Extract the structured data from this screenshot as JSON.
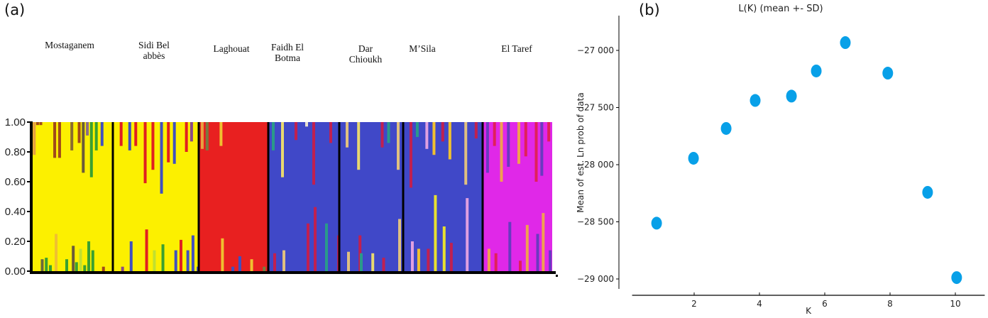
{
  "panel_a_label": "(a)",
  "panel_b_label": "(b)",
  "chart_data": [
    {
      "type": "bar",
      "subtype": "stacked-admixture",
      "title": "",
      "ylim": [
        0,
        1
      ],
      "yticks": [
        "0.00",
        "0.20",
        "0.40",
        "0.60",
        "0.80",
        "1.00"
      ],
      "populations": [
        {
          "name": "Mostaganem",
          "label": "Mostaganem",
          "base_color": "#fcf000",
          "stripes": [
            {
              "pos": 0.02,
              "top": [
                0.22,
                "#e8a040"
              ]
            },
            {
              "pos": 0.06,
              "top": [
                0.02,
                "#a04a1a"
              ]
            },
            {
              "pos": 0.1,
              "top": [
                0.02,
                "#a04a1a"
              ],
              "bottom": [
                0.08,
                "#6a6a3a"
              ]
            },
            {
              "pos": 0.15,
              "bottom": [
                0.09,
                "#3aa030"
              ]
            },
            {
              "pos": 0.2,
              "bottom": [
                0.04,
                "#3aa030"
              ]
            },
            {
              "pos": 0.27,
              "top": [
                0.24,
                "#a04a1a"
              ],
              "bottom": [
                0.25,
                "#f0c030"
              ]
            },
            {
              "pos": 0.33,
              "top": [
                0.24,
                "#a04a1a"
              ]
            },
            {
              "pos": 0.4,
              "bottom": [
                0.08,
                "#3aa030"
              ]
            },
            {
              "pos": 0.48,
              "top": [
                0.19,
                "#8a6a30"
              ],
              "bottom": [
                0.17,
                "#6a5a3a"
              ]
            },
            {
              "pos": 0.52,
              "bottom": [
                0.06,
                "#3aa030"
              ]
            },
            {
              "pos": 0.57,
              "top": [
                0.14,
                "#a04a1a"
              ],
              "bottom": [
                0.15,
                "#c0e030"
              ]
            },
            {
              "pos": 0.62,
              "top": [
                0.34,
                "#6a5a3a"
              ],
              "bottom": [
                0.04,
                "#3aa030"
              ]
            },
            {
              "pos": 0.67,
              "top": [
                0.09,
                "#8a6a8a"
              ],
              "bottom": [
                0.2,
                "#3aa030"
              ]
            },
            {
              "pos": 0.72,
              "top": [
                0.37,
                "#3aa030"
              ],
              "bottom": [
                0.14,
                "#3aa030"
              ]
            },
            {
              "pos": 0.78,
              "top": [
                0.19,
                "#3aa030"
              ]
            },
            {
              "pos": 0.85,
              "top": [
                0.16,
                "#4050c0"
              ],
              "bottom": [
                0.03,
                "#a04a1a"
              ]
            }
          ]
        },
        {
          "name": "Sidi Bel abbès",
          "label": "Sidi Bel\nabbès",
          "base_color": "#fcf000",
          "stripes": [
            {
              "pos": 0.08,
              "top": [
                0.16,
                "#e02020"
              ],
              "bottom": [
                0.03,
                "#8a4a8a"
              ]
            },
            {
              "pos": 0.18,
              "top": [
                0.19,
                "#4050c0"
              ],
              "bottom": [
                0.2,
                "#4050c0"
              ]
            },
            {
              "pos": 0.25,
              "top": [
                0.16,
                "#e02020"
              ]
            },
            {
              "pos": 0.36,
              "top": [
                0.41,
                "#e02020"
              ],
              "bottom": [
                0.28,
                "#e02020"
              ]
            },
            {
              "pos": 0.45,
              "top": [
                0.32,
                "#e02020"
              ],
              "bottom": [
                0.14,
                "#c0e030"
              ]
            },
            {
              "pos": 0.55,
              "top": [
                0.48,
                "#4050c0"
              ],
              "bottom": [
                0.18,
                "#3aa030"
              ]
            },
            {
              "pos": 0.63,
              "top": [
                0.27,
                "#e02020"
              ]
            },
            {
              "pos": 0.7,
              "top": [
                0.28,
                "#4050c0"
              ],
              "bottom": [
                0.14,
                "#4050c0"
              ]
            },
            {
              "pos": 0.76,
              "bottom": [
                0.21,
                "#e02020"
              ]
            },
            {
              "pos": 0.84,
              "top": [
                0.2,
                "#e02020"
              ],
              "bottom": [
                0.14,
                "#4050c0"
              ]
            },
            {
              "pos": 0.9,
              "top": [
                0.13,
                "#8a4a8a"
              ],
              "bottom": [
                0.24,
                "#4050c0"
              ]
            },
            {
              "pos": 0.96,
              "bottom": [
                0.03,
                "#4050c0"
              ]
            }
          ]
        },
        {
          "name": "Laghouat",
          "label": "Laghouat",
          "base_color": "#e82020",
          "stripes": [
            {
              "pos": 0.03,
              "top": [
                0.18,
                "#e8a040"
              ]
            },
            {
              "pos": 0.1,
              "top": [
                0.19,
                "#7a7a40"
              ]
            },
            {
              "pos": 0.3,
              "top": [
                0.16,
                "#f0c030"
              ],
              "bottom": [
                0.22,
                "#f0c030"
              ]
            },
            {
              "pos": 0.45,
              "bottom": [
                0.03,
                "#4050c0"
              ]
            },
            {
              "pos": 0.55,
              "bottom": [
                0.1,
                "#4050c0"
              ]
            },
            {
              "pos": 0.72,
              "bottom": [
                0.08,
                "#f0c030"
              ]
            },
            {
              "pos": 0.9,
              "bottom": [
                0.03,
                "#7a7a40"
              ]
            }
          ]
        },
        {
          "name": "Faidh El Botma",
          "label": "Faidh El\nBotma",
          "base_color": "#4048c8",
          "stripes": [
            {
              "pos": 0.05,
              "top": [
                0.19,
                "#2a9a8a"
              ],
              "bottom": [
                0.12,
                "#c02050"
              ]
            },
            {
              "pos": 0.18,
              "top": [
                0.37,
                "#e8d870"
              ],
              "bottom": [
                0.14,
                "#e0c080"
              ]
            },
            {
              "pos": 0.37,
              "top": [
                0.12,
                "#c02050"
              ]
            },
            {
              "pos": 0.52,
              "top": [
                0.03,
                "#e8e0d0"
              ],
              "bottom": [
                0.32,
                "#c02050"
              ]
            },
            {
              "pos": 0.62,
              "top": [
                0.42,
                "#c02050"
              ],
              "bottom": [
                0.43,
                "#c02050"
              ]
            },
            {
              "pos": 0.78,
              "bottom": [
                0.32,
                "#2a9a8a"
              ]
            },
            {
              "pos": 0.86,
              "top": [
                0.14,
                "#c02050"
              ]
            },
            {
              "pos": 0.95,
              "bottom": [
                0.24,
                "#c02050"
              ]
            }
          ]
        },
        {
          "name": "Dar Chioukh",
          "label": "Dar\nChioukh",
          "base_color": "#4048c8",
          "stripes": [
            {
              "pos": 0.1,
              "top": [
                0.17,
                "#e0c080"
              ],
              "bottom": [
                0.13,
                "#e0c080"
              ]
            },
            {
              "pos": 0.28,
              "top": [
                0.32,
                "#e8d870"
              ],
              "bottom": [
                0.24,
                "#c02050"
              ]
            },
            {
              "pos": 0.3,
              "bottom": [
                0.12,
                "#2a9a8a"
              ]
            },
            {
              "pos": 0.48,
              "bottom": [
                0.12,
                "#e8d870"
              ]
            },
            {
              "pos": 0.65,
              "top": [
                0.17,
                "#c02050"
              ],
              "bottom": [
                0.09,
                "#c02050"
              ]
            },
            {
              "pos": 0.75,
              "top": [
                0.14,
                "#2a9a8a"
              ]
            },
            {
              "pos": 0.9,
              "top": [
                0.32,
                "#e0c080"
              ],
              "bottom": [
                0.35,
                "#e0c080"
              ]
            }
          ]
        },
        {
          "name": "M'Sila",
          "label": "M’Sila",
          "base_color": "#4048c8",
          "stripes": [
            {
              "pos": 0.08,
              "top": [
                0.44,
                "#c02050"
              ],
              "bottom": [
                0.2,
                "#e0a0e0"
              ]
            },
            {
              "pos": 0.16,
              "top": [
                0.1,
                "#2a9a8a"
              ],
              "bottom": [
                0.15,
                "#f0c030"
              ]
            },
            {
              "pos": 0.28,
              "top": [
                0.18,
                "#e0a0e0"
              ],
              "bottom": [
                0.15,
                "#c02050"
              ]
            },
            {
              "pos": 0.37,
              "top": [
                0.22,
                "#f0c030"
              ],
              "bottom": [
                0.51,
                "#e8e030"
              ]
            },
            {
              "pos": 0.48,
              "top": [
                0.13,
                "#c02050"
              ],
              "bottom": [
                0.3,
                "#e8e030"
              ]
            },
            {
              "pos": 0.57,
              "top": [
                0.25,
                "#f0c030"
              ],
              "bottom": [
                0.19,
                "#c02050"
              ]
            },
            {
              "pos": 0.77,
              "top": [
                0.42,
                "#e0c080"
              ],
              "bottom": [
                0.49,
                "#e0a0e0"
              ]
            },
            {
              "pos": 0.9,
              "top": [
                0.11,
                "#c02050"
              ]
            }
          ]
        },
        {
          "name": "El Taref",
          "label": "El Taref",
          "base_color": "#e028e8",
          "stripes": [
            {
              "pos": 0.05,
              "top": [
                0.34,
                "#6a3ac0"
              ],
              "bottom": [
                0.15,
                "#f0a050"
              ]
            },
            {
              "pos": 0.15,
              "top": [
                0.16,
                "#e0205a"
              ],
              "bottom": [
                0.12,
                "#e0205a"
              ]
            },
            {
              "pos": 0.25,
              "top": [
                0.4,
                "#f0a050"
              ]
            },
            {
              "pos": 0.35,
              "top": [
                0.3,
                "#6a3ac0"
              ],
              "bottom": [
                0.33,
                "#6a3ac0"
              ]
            },
            {
              "pos": 0.5,
              "top": [
                0.28,
                "#f0a050"
              ],
              "bottom": [
                0.07,
                "#e0205a"
              ]
            },
            {
              "pos": 0.6,
              "top": [
                0.23,
                "#e0205a"
              ],
              "bottom": [
                0.31,
                "#f0a050"
              ]
            },
            {
              "pos": 0.75,
              "top": [
                0.4,
                "#e0205a"
              ],
              "bottom": [
                0.25,
                "#6a3ac0"
              ]
            },
            {
              "pos": 0.83,
              "top": [
                0.36,
                "#6a3ac0"
              ],
              "bottom": [
                0.39,
                "#f0a050"
              ]
            },
            {
              "pos": 0.93,
              "top": [
                0.13,
                "#e0205a"
              ],
              "bottom": [
                0.14,
                "#6a3ac0"
              ]
            }
          ]
        }
      ]
    },
    {
      "type": "scatter",
      "title": "L(K) (mean +- SD)",
      "xlabel": "K",
      "ylabel": "Mean of est. Ln prob of data",
      "xlim": [
        0.1,
        10.9
      ],
      "ylim": [
        -29120,
        -26720
      ],
      "xticks": [
        2,
        4,
        6,
        8,
        10
      ],
      "yticks": [
        -27000,
        -27500,
        -28000,
        -28500,
        -29000
      ],
      "ytick_labels": [
        "−27 000",
        "−27 500",
        "−28 000",
        "−28 500",
        "−29 000"
      ],
      "color": "#08a0e8",
      "points": [
        {
          "x": 0.85,
          "y": -28512
        },
        {
          "x": 1.98,
          "y": -27944
        },
        {
          "x": 2.98,
          "y": -27683
        },
        {
          "x": 3.87,
          "y": -27438
        },
        {
          "x": 4.98,
          "y": -27400
        },
        {
          "x": 5.74,
          "y": -27180
        },
        {
          "x": 6.63,
          "y": -26932
        },
        {
          "x": 7.93,
          "y": -27199
        },
        {
          "x": 9.15,
          "y": -28242
        },
        {
          "x": 10.04,
          "y": -28988
        }
      ]
    }
  ]
}
